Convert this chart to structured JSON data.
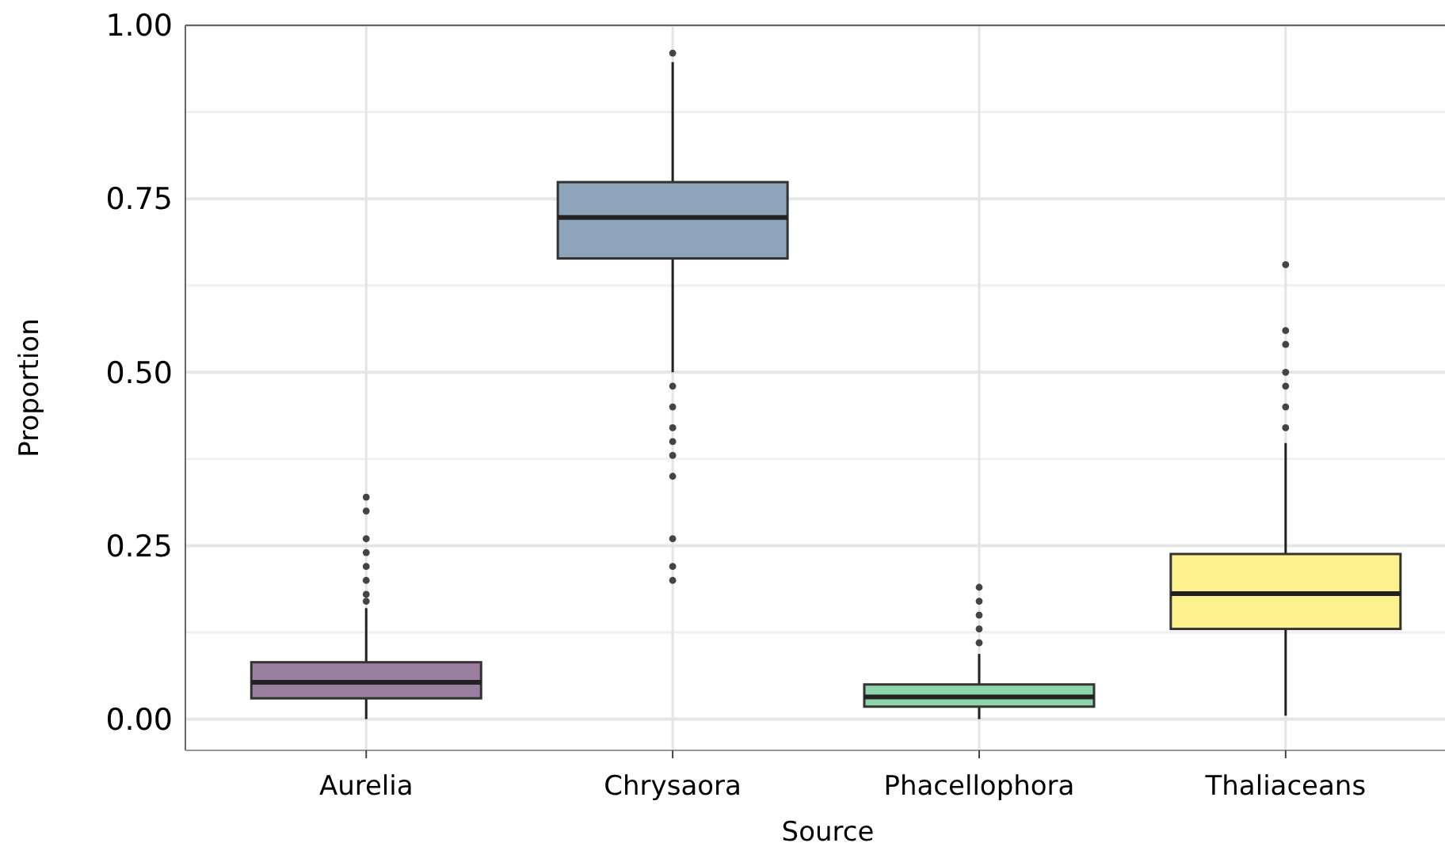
{
  "chart_data": {
    "type": "box",
    "xlabel": "Source",
    "ylabel": "Proportion",
    "categories": [
      "Aurelia",
      "Chrysaora",
      "Phacellophora",
      "Thaliaceans"
    ],
    "colors": [
      "#9a7fa0",
      "#8ea4bb",
      "#8fd5ac",
      "#fdf18e"
    ],
    "boxes": [
      {
        "low": 0.0,
        "q1": 0.03,
        "median": 0.053,
        "q3": 0.082,
        "high": 0.16,
        "outliers": [
          0.17,
          0.18,
          0.2,
          0.22,
          0.24,
          0.26,
          0.3,
          0.32
        ]
      },
      {
        "low": 0.5,
        "q1": 0.664,
        "median": 0.723,
        "q3": 0.774,
        "high": 0.947,
        "outliers": [
          0.96,
          0.48,
          0.45,
          0.42,
          0.4,
          0.38,
          0.35,
          0.26,
          0.22,
          0.2
        ]
      },
      {
        "low": 0.0,
        "q1": 0.018,
        "median": 0.032,
        "q3": 0.05,
        "high": 0.094,
        "outliers": [
          0.11,
          0.13,
          0.15,
          0.17,
          0.19
        ]
      },
      {
        "low": 0.005,
        "q1": 0.13,
        "median": 0.181,
        "q3": 0.238,
        "high": 0.398,
        "outliers": [
          0.42,
          0.45,
          0.48,
          0.5,
          0.54,
          0.56,
          0.655
        ]
      }
    ],
    "ylim": [
      -0.045,
      1.0
    ],
    "yticks": [
      {
        "value": 0,
        "label": "0.00"
      },
      {
        "value": 0.125,
        "label": null
      },
      {
        "value": 0.25,
        "label": "0.25"
      },
      {
        "value": 0.375,
        "label": null
      },
      {
        "value": 0.5,
        "label": "0.50"
      },
      {
        "value": 0.625,
        "label": null
      },
      {
        "value": 0.75,
        "label": "0.75"
      },
      {
        "value": 0.875,
        "label": null
      },
      {
        "value": 1,
        "label": "1.00"
      }
    ],
    "grid": true
  }
}
